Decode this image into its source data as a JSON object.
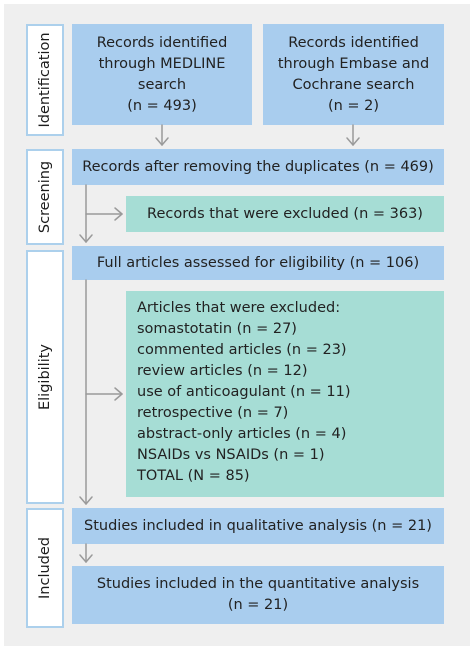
{
  "stages": {
    "identification": "Identification",
    "screening": "Screening",
    "eligibility": "Eligibility",
    "included": "Included"
  },
  "boxes": {
    "medline": [
      "Records identified",
      "through MEDLINE",
      "search",
      "(n = 493)"
    ],
    "embase": [
      "Records identified",
      "through Embase and",
      "Cochrane search",
      "(n = 2)"
    ],
    "after_duplicates": "Records after removing the duplicates (n = 469)",
    "excluded_records": "Records that were excluded (n = 363)",
    "full_articles": "Full articles assessed for eligibility (n = 106)",
    "excluded_articles": {
      "title": "Articles that were excluded:",
      "items": [
        "somastotatin (n = 27)",
        "commented articles (n = 23)",
        "review articles (n = 12)",
        "use of anticoagulant (n = 11)",
        "retrospective (n = 7)",
        "abstract-only articles (n = 4)",
        "NSAIDs vs NSAIDs (n = 1)",
        "TOTAL (N = 85)"
      ]
    },
    "qualitative": "Studies included in qualitative analysis (n = 21)",
    "quantitative": [
      "Studies included in the quantitative analysis",
      "(n = 21)"
    ]
  },
  "colors": {
    "blue_box": "#a9cdee",
    "green_box": "#a6ddd5",
    "background": "#efefef",
    "arrow": "#9a9a9a"
  }
}
